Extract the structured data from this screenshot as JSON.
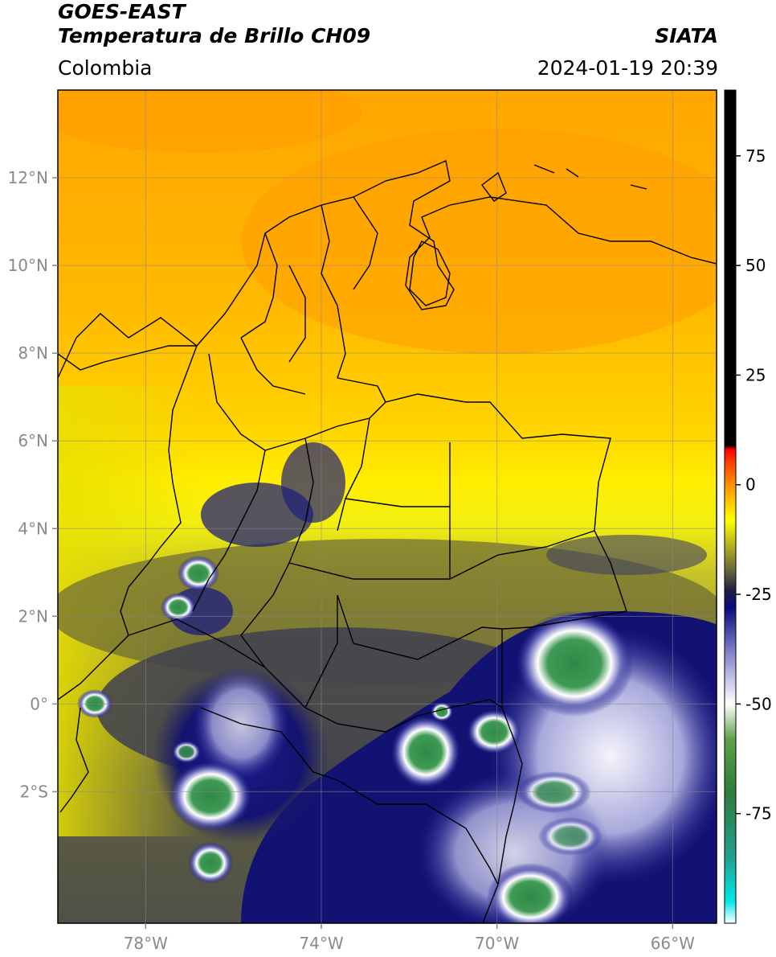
{
  "header": {
    "title_line1": "GOES-EAST",
    "title_line2": "Temperatura de Brillo CH09",
    "region": "Colombia",
    "brand": "SIATA",
    "datetime": "2024-01-19 20:39"
  },
  "map": {
    "lon_range": [
      -80,
      -65
    ],
    "lat_range": [
      -5,
      14
    ],
    "grid": true,
    "x_ticks": [
      {
        "lon": -78,
        "label": "78°W"
      },
      {
        "lon": -74,
        "label": "74°W"
      },
      {
        "lon": -70,
        "label": "70°W"
      },
      {
        "lon": -66,
        "label": "66°W"
      }
    ],
    "y_ticks": [
      {
        "lat": 12,
        "label": "12°N"
      },
      {
        "lat": 10,
        "label": "10°N"
      },
      {
        "lat": 8,
        "label": "8°N"
      },
      {
        "lat": 6,
        "label": "6°N"
      },
      {
        "lat": 4,
        "label": "4°N"
      },
      {
        "lat": 2,
        "label": "2°N"
      },
      {
        "lat": 0,
        "label": "0°"
      },
      {
        "lat": -2,
        "label": "2°S"
      }
    ]
  },
  "colorbar": {
    "range": [
      -100,
      90
    ],
    "ticks": [
      {
        "value": 75,
        "label": "75"
      },
      {
        "value": 50,
        "label": "50"
      },
      {
        "value": 25,
        "label": "25"
      },
      {
        "value": 0,
        "label": "0"
      },
      {
        "value": -25,
        "label": "-25"
      },
      {
        "value": -50,
        "label": "-50"
      },
      {
        "value": -75,
        "label": "-75"
      }
    ],
    "stops": [
      {
        "value": -100,
        "color": "#ffffff"
      },
      {
        "value": -95,
        "color": "#00e8e8"
      },
      {
        "value": -85,
        "color": "#20a090"
      },
      {
        "value": -70,
        "color": "#2e7d3a"
      },
      {
        "value": -58,
        "color": "#5fa04a"
      },
      {
        "value": -50,
        "color": "#ffffff"
      },
      {
        "value": -38,
        "color": "#8080c8"
      },
      {
        "value": -28,
        "color": "#0a0a80"
      },
      {
        "value": -24,
        "color": "#202040"
      },
      {
        "value": -20,
        "color": "#606040"
      },
      {
        "value": -14,
        "color": "#b0b020"
      },
      {
        "value": -8,
        "color": "#ffff00"
      },
      {
        "value": 0,
        "color": "#ff9000"
      },
      {
        "value": 5,
        "color": "#ff4000"
      },
      {
        "value": 8,
        "color": "#ff0000"
      },
      {
        "value": 9,
        "color": "#000000"
      },
      {
        "value": 90,
        "color": "#000000"
      }
    ]
  }
}
